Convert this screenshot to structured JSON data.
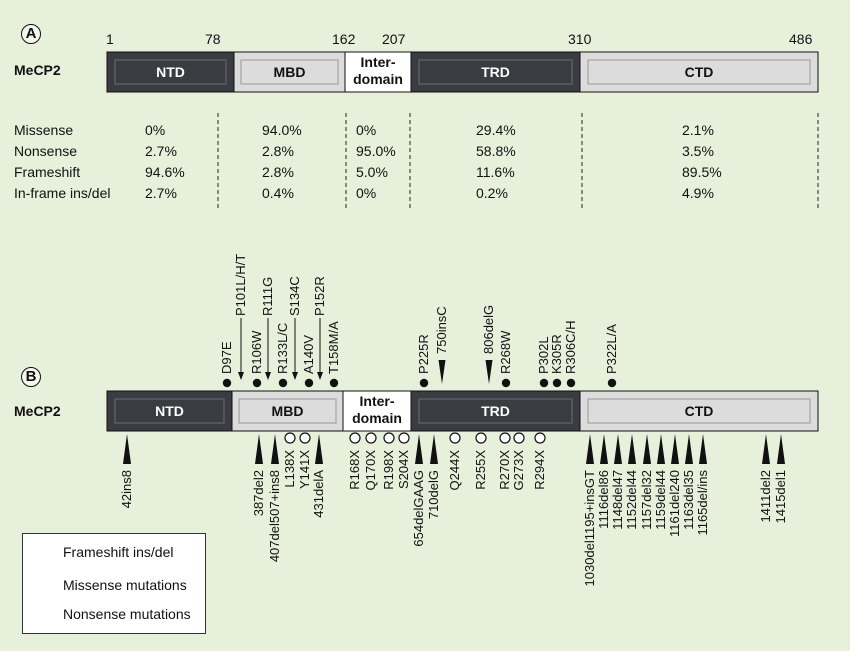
{
  "panel_a": {
    "label": "A",
    "protein": "MeCP2",
    "positions": [
      "1",
      "78",
      "162",
      "207",
      "310",
      "486"
    ],
    "domains": [
      "NTD",
      "MBD",
      "Inter-\ndomain",
      "TRD",
      "CTD"
    ],
    "row_labels": [
      "Missense",
      "Nonsense",
      "Frameshift",
      "In-frame ins/del"
    ],
    "columns": [
      [
        "0%",
        "2.7%",
        "94.6%",
        "2.7%"
      ],
      [
        "94.0%",
        "2.8%",
        "2.8%",
        "0.4%"
      ],
      [
        "0%",
        "95.0%",
        "5.0%",
        "0%"
      ],
      [
        "29.4%",
        "58.8%",
        "11.6%",
        "0.2%"
      ],
      [
        "2.1%",
        "3.5%",
        "89.5%",
        "4.9%"
      ]
    ]
  },
  "panel_b": {
    "label": "B",
    "protein": "MeCP2",
    "domains": [
      "NTD",
      "MBD",
      "Inter-\ndomain",
      "TRD",
      "CTD"
    ],
    "top_mutations": [
      {
        "label": "D97E",
        "marker": "dot"
      },
      {
        "label": "P101L/H/T",
        "marker": "arrow"
      },
      {
        "label": "R106W",
        "marker": "dot"
      },
      {
        "label": "R111G",
        "marker": "arrow"
      },
      {
        "label": "R133L/C",
        "marker": "dot"
      },
      {
        "label": "S134C",
        "marker": "arrow"
      },
      {
        "label": "A140V",
        "marker": "dot"
      },
      {
        "label": "P152R",
        "marker": "arrow"
      },
      {
        "label": "T158M/A",
        "marker": "dot"
      },
      {
        "label": "P225R",
        "marker": "dot"
      },
      {
        "label": "750insC",
        "marker": "triangle"
      },
      {
        "label": "806delG",
        "marker": "triangle"
      },
      {
        "label": "R268W",
        "marker": "dot"
      },
      {
        "label": "P302L",
        "marker": "dot"
      },
      {
        "label": "K305R",
        "marker": "dot"
      },
      {
        "label": "R306C/H",
        "marker": "dot"
      },
      {
        "label": "P322L/A",
        "marker": "dot"
      }
    ],
    "bottom_mutations": [
      {
        "label": "42ins8",
        "marker": "triangle"
      },
      {
        "label": "387del2",
        "marker": "triangle"
      },
      {
        "label": "407del507+ins8",
        "marker": "triangle"
      },
      {
        "label": "L138X",
        "marker": "circle"
      },
      {
        "label": "Y141X",
        "marker": "circle"
      },
      {
        "label": "431delA",
        "marker": "triangle"
      },
      {
        "label": "R168X",
        "marker": "circle"
      },
      {
        "label": "Q170X",
        "marker": "circle"
      },
      {
        "label": "R198X",
        "marker": "circle"
      },
      {
        "label": "S204X",
        "marker": "circle"
      },
      {
        "label": "654delGAAG",
        "marker": "triangle"
      },
      {
        "label": "710delG",
        "marker": "triangle"
      },
      {
        "label": "Q244X",
        "marker": "circle"
      },
      {
        "label": "R255X",
        "marker": "circle"
      },
      {
        "label": "R270X",
        "marker": "circle"
      },
      {
        "label": "G273X",
        "marker": "circle"
      },
      {
        "label": "R294X",
        "marker": "circle"
      },
      {
        "label": "1030del1195+insGT",
        "marker": "triangle"
      },
      {
        "label": "1116del86",
        "marker": "triangle"
      },
      {
        "label": "1148del47",
        "marker": "triangle"
      },
      {
        "label": "1152del44",
        "marker": "triangle"
      },
      {
        "label": "1157del32",
        "marker": "triangle"
      },
      {
        "label": "1159del44",
        "marker": "triangle"
      },
      {
        "label": "1161del240",
        "marker": "triangle"
      },
      {
        "label": "1163del35",
        "marker": "triangle"
      },
      {
        "label": "1165del/ins",
        "marker": "triangle"
      },
      {
        "label": "1411del2",
        "marker": "triangle"
      },
      {
        "label": "1415del1",
        "marker": "triangle"
      }
    ]
  },
  "legend": {
    "items": [
      {
        "label": "Frameshift ins/del",
        "marker": "triangle"
      },
      {
        "label": "Missense mutations",
        "marker": "dot"
      },
      {
        "label": "Nonsense mutations",
        "marker": "circle"
      }
    ]
  },
  "colors": {
    "background": "#e6f0db",
    "dark_domain": "#3a3c42",
    "light_domain": "#dcdcdc",
    "inter_domain": "#ffffff"
  }
}
